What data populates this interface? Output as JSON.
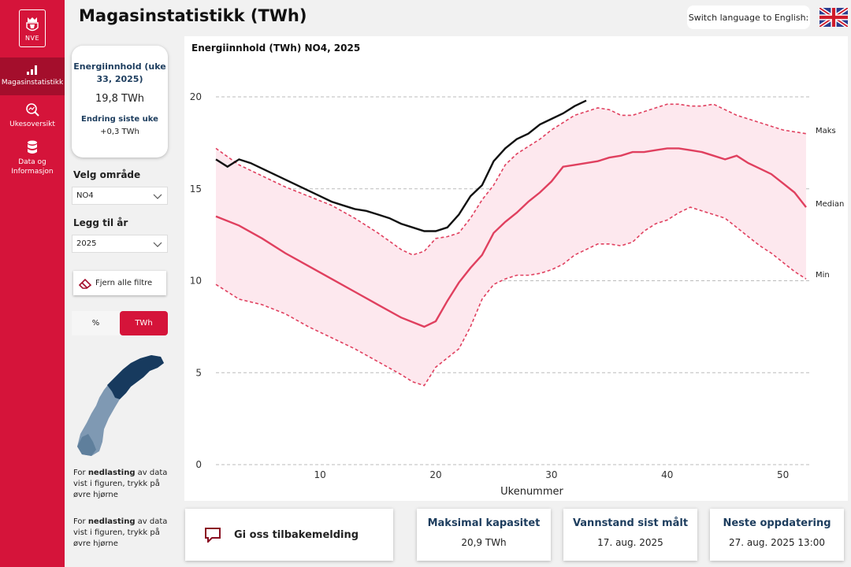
{
  "sidebar": {
    "logo_text": "NVE",
    "items": [
      {
        "label": "Magasinstatistikk",
        "active": true
      },
      {
        "label": "Ukesoversikt",
        "active": false
      },
      {
        "label": "Data og Informasjon",
        "active": false
      }
    ]
  },
  "header": {
    "title": "Magasinstatistikk (TWh)",
    "language_button": "Switch language to English:"
  },
  "kpi": {
    "title": "Energiinnhold (uke 33, 2025)",
    "value": "19,8 TWh",
    "change_label": "Endring siste uke",
    "change_value": "+0,3 TWh"
  },
  "filters": {
    "area_label": "Velg område",
    "area_value": "NO4",
    "year_label": "Legg til år",
    "year_value": "2025",
    "clear_label": "Fjern alle filtre",
    "unit_options": [
      "%",
      "TWh"
    ],
    "unit_selected": "TWh"
  },
  "notes": [
    {
      "prefix": "For ",
      "bold": "nedlasting",
      "suffix": " av data vist i figuren, trykk på øvre hjørne"
    },
    {
      "prefix": "For ",
      "bold": "nedlasting",
      "suffix": " av data vist i figuren, trykk på øvre hjørne"
    }
  ],
  "colors": {
    "brand": "#d5143a",
    "brand_dark": "#a40e2c",
    "navy": "#1d3d5e",
    "band": "#fde8ee",
    "median": "#e0405f",
    "current_year": "#111111"
  },
  "chart_data": {
    "type": "line",
    "title": "Energiinnhold (TWh) NO4, 2025",
    "xlabel": "Ukenummer",
    "ylabel": "",
    "xlim": [
      1,
      52
    ],
    "ylim": [
      0,
      20
    ],
    "xticks": [
      10,
      20,
      30,
      40,
      50
    ],
    "yticks": [
      0,
      5,
      10,
      15,
      20
    ],
    "grid": "horizontal dashed",
    "series_labels": [
      "Maks",
      "Median",
      "Min"
    ],
    "series": [
      {
        "name": "Maks",
        "style": "dashed",
        "x": [
          1,
          3,
          5,
          7,
          9,
          11,
          13,
          15,
          17,
          18,
          19,
          20,
          21,
          22,
          23,
          24,
          25,
          26,
          27,
          28,
          29,
          30,
          31,
          32,
          33,
          34,
          35,
          36,
          37,
          38,
          39,
          40,
          41,
          42,
          43,
          44,
          45,
          46,
          47,
          48,
          49,
          50,
          51,
          52
        ],
        "values": [
          17.2,
          16.3,
          15.7,
          15.1,
          14.6,
          14.1,
          13.4,
          12.6,
          11.7,
          11.4,
          11.6,
          12.3,
          12.4,
          12.6,
          13.4,
          14.4,
          15.2,
          16.3,
          16.9,
          17.3,
          17.7,
          18.2,
          18.6,
          19.0,
          19.2,
          19.4,
          19.3,
          19.0,
          19.0,
          19.2,
          19.4,
          19.6,
          19.6,
          19.5,
          19.5,
          19.6,
          19.3,
          19.0,
          18.8,
          18.6,
          18.4,
          18.2,
          18.1,
          18.0
        ]
      },
      {
        "name": "Median",
        "style": "solid",
        "x": [
          1,
          3,
          5,
          7,
          9,
          11,
          13,
          15,
          17,
          19,
          20,
          21,
          22,
          23,
          24,
          25,
          26,
          27,
          28,
          29,
          30,
          31,
          32,
          33,
          34,
          35,
          36,
          37,
          38,
          39,
          40,
          41,
          42,
          43,
          44,
          45,
          46,
          47,
          48,
          49,
          50,
          51,
          52
        ],
        "values": [
          13.5,
          13.0,
          12.3,
          11.5,
          10.8,
          10.1,
          9.4,
          8.7,
          8.0,
          7.5,
          7.8,
          8.9,
          9.9,
          10.7,
          11.4,
          12.6,
          13.2,
          13.7,
          14.3,
          14.8,
          15.4,
          16.2,
          16.3,
          16.4,
          16.5,
          16.7,
          16.8,
          17.0,
          17.0,
          17.1,
          17.2,
          17.2,
          17.1,
          17.0,
          16.8,
          16.6,
          16.8,
          16.4,
          16.1,
          15.8,
          15.3,
          14.8,
          14.0
        ]
      },
      {
        "name": "Min",
        "style": "dashed",
        "x": [
          1,
          3,
          5,
          7,
          9,
          11,
          13,
          15,
          17,
          18,
          19,
          20,
          21,
          22,
          23,
          24,
          25,
          26,
          27,
          28,
          29,
          30,
          31,
          32,
          33,
          34,
          35,
          36,
          37,
          38,
          39,
          40,
          41,
          42,
          43,
          44,
          45,
          46,
          47,
          48,
          49,
          50,
          51,
          52
        ],
        "values": [
          9.8,
          9.0,
          8.7,
          8.2,
          7.5,
          6.9,
          6.3,
          5.6,
          4.9,
          4.5,
          4.3,
          5.3,
          5.8,
          6.3,
          7.5,
          9.0,
          9.8,
          10.1,
          10.3,
          10.3,
          10.4,
          10.6,
          10.9,
          11.4,
          11.7,
          12.0,
          12.0,
          11.9,
          12.1,
          12.7,
          13.1,
          13.3,
          13.7,
          14.0,
          13.8,
          13.6,
          13.4,
          12.9,
          12.4,
          11.9,
          11.5,
          11.0,
          10.5,
          10.1
        ]
      },
      {
        "name": "2025",
        "style": "solid",
        "x": [
          1,
          2,
          3,
          4,
          5,
          6,
          7,
          8,
          9,
          10,
          11,
          12,
          13,
          14,
          15,
          16,
          17,
          18,
          19,
          20,
          21,
          22,
          23,
          24,
          25,
          26,
          27,
          28,
          29,
          30,
          31,
          32,
          33
        ],
        "values": [
          16.6,
          16.2,
          16.6,
          16.4,
          16.1,
          15.8,
          15.5,
          15.2,
          14.9,
          14.6,
          14.3,
          14.1,
          13.9,
          13.8,
          13.6,
          13.4,
          13.1,
          12.9,
          12.7,
          12.7,
          12.9,
          13.6,
          14.6,
          15.2,
          16.5,
          17.2,
          17.7,
          18.0,
          18.5,
          18.8,
          19.1,
          19.5,
          19.8
        ]
      }
    ]
  },
  "bottom": {
    "feedback_label": "Gi oss tilbakemelding",
    "cards": [
      {
        "title": "Maksimal kapasitet",
        "value": "20,9 TWh"
      },
      {
        "title": "Vannstand sist målt",
        "value": "17. aug. 2025"
      },
      {
        "title": "Neste oppdatering",
        "value": "27. aug. 2025 13:00"
      }
    ]
  }
}
